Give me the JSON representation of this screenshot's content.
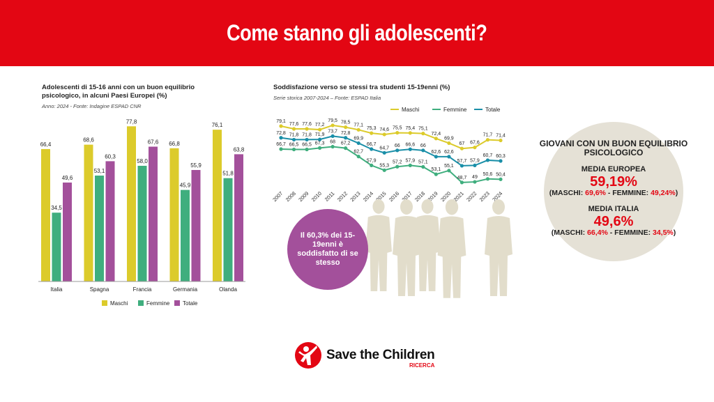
{
  "header": {
    "title": "Come stanno gli adolescenti?"
  },
  "colors": {
    "brand": "#e30613",
    "maschi": "#dccb2b",
    "femmine": "#3fae7e",
    "totale_bar": "#a3509b",
    "totale_line": "#1a8fa8",
    "silhouette": "#e2ddcb"
  },
  "chart_data": [
    {
      "type": "bar",
      "title": "Adolescenti di 15-16 anni con un buon equilibrio psicologico, in alcuni Paesi Europei (%)",
      "subtitle": "Anno: 2024 - Fonte: Indagine ESPAD CNR",
      "categories": [
        "Italia",
        "Spagna",
        "Francia",
        "Germania",
        "Olanda"
      ],
      "series": [
        {
          "name": "Maschi",
          "values": [
            66.4,
            68.6,
            77.8,
            66.8,
            76.1
          ],
          "labels": [
            "66,4",
            "68,6",
            "77,8",
            "66,8",
            "76,1"
          ]
        },
        {
          "name": "Femmine",
          "values": [
            34.5,
            53.1,
            58.0,
            45.9,
            51.8
          ],
          "labels": [
            "34,5",
            "53,1",
            "58,0",
            "45,9",
            "51,8"
          ]
        },
        {
          "name": "Totale",
          "values": [
            49.6,
            60.3,
            67.6,
            55.9,
            63.8
          ],
          "labels": [
            "49,6",
            "60,3",
            "67,6",
            "55,9",
            "63,8"
          ]
        }
      ],
      "legend": "bottom",
      "grid": false
    },
    {
      "type": "line",
      "title": "Soddisfazione verso se stessi tra studenti 15-19enni (%)",
      "subtitle": "Serie storica 2007-2024 – Fonte: ESPAD Italia",
      "x": [
        "2007",
        "2008",
        "2009",
        "2010",
        "2011",
        "2012",
        "2013",
        "2014",
        "2015",
        "2016",
        "2017",
        "2018",
        "2019",
        "2020",
        "2021",
        "2022",
        "2023",
        "2024"
      ],
      "series": [
        {
          "name": "Maschi",
          "values": [
            79.1,
            77.6,
            77.6,
            77.2,
            79.5,
            78.5,
            77.1,
            75.3,
            74.6,
            75.5,
            75.4,
            75.1,
            72.4,
            69.9,
            67,
            67.6,
            71.7,
            71.4
          ]
        },
        {
          "name": "Femmine",
          "values": [
            66.7,
            66.5,
            66.5,
            67.3,
            68,
            67.2,
            62.7,
            57.9,
            55.3,
            57.2,
            57.9,
            57.1,
            53.1,
            55.1,
            48.7,
            49,
            50.6,
            50.4
          ]
        },
        {
          "name": "Totale",
          "values": [
            72.8,
            71.8,
            71.8,
            71.9,
            73.7,
            72.8,
            69.9,
            66.7,
            64.7,
            66,
            66.6,
            66,
            62.6,
            62.6,
            57.7,
            57.9,
            60.7,
            60.3
          ]
        }
      ],
      "legend": "top-right",
      "grid": false
    }
  ],
  "bubble": {
    "text": "Il 60,3% dei 15-19enni è soddisfatto di se stesso"
  },
  "info": {
    "heading": "GIOVANI CON UN BUON EQUILIBRIO PSICOLOGICO",
    "eu_label": "MEDIA EUROPEA",
    "eu_value": "59,19%",
    "eu_m_label": "(MASCHI: ",
    "eu_m": "69,6%",
    "eu_f_label": " - FEMMINE: ",
    "eu_f": "49,24%",
    "eu_close": ")",
    "it_label": "MEDIA ITALIA",
    "it_value": "49,6%",
    "it_m_label": "(MASCHI: ",
    "it_m": "66,4%",
    "it_f_label": " - FEMMINE: ",
    "it_f": "34,5%",
    "it_close": ")"
  },
  "logo": {
    "name": "Save the Children",
    "sub": "RICERCA"
  }
}
